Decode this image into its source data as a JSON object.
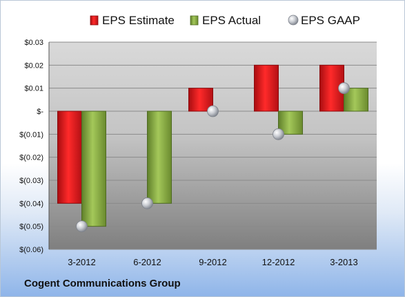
{
  "company": "Cogent Communications Group",
  "chart_data": {
    "type": "bar",
    "categories": [
      "3-2012",
      "6-2012",
      "9-2012",
      "12-2012",
      "3-2013"
    ],
    "series": [
      {
        "name": "EPS Estimate",
        "kind": "bar",
        "color": "#e0151b",
        "values": [
          -0.04,
          null,
          0.01,
          0.02,
          0.02
        ]
      },
      {
        "name": "EPS Actual",
        "kind": "bar",
        "color": "#8cb040",
        "values": [
          -0.05,
          -0.04,
          null,
          -0.01,
          0.01
        ]
      },
      {
        "name": "EPS GAAP",
        "kind": "marker",
        "color": "#b8bcc4",
        "values": [
          -0.05,
          -0.04,
          0.0,
          -0.01,
          0.01
        ]
      }
    ],
    "ylim": [
      -0.06,
      0.03
    ],
    "yticks": [
      0.03,
      0.02,
      0.01,
      0,
      -0.01,
      -0.02,
      -0.03,
      -0.04,
      -0.05,
      -0.06
    ],
    "ytick_labels": [
      "$0.03",
      "$0.02",
      "$0.01",
      "$-",
      "$(0.01)",
      "$(0.02)",
      "$(0.03)",
      "$(0.04)",
      "$(0.05)",
      "$(0.06)"
    ],
    "legend_position": "top",
    "grid": true
  }
}
